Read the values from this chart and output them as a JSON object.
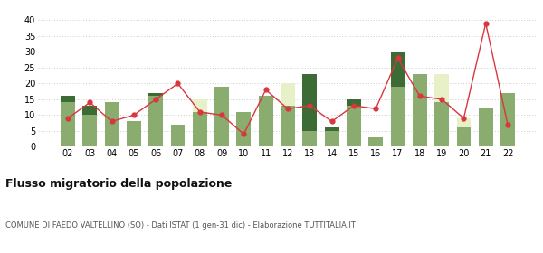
{
  "years": [
    "02",
    "03",
    "04",
    "05",
    "06",
    "07",
    "08",
    "09",
    "10",
    "11",
    "12",
    "13",
    "14",
    "15",
    "16",
    "17",
    "18",
    "19",
    "20",
    "21",
    "22"
  ],
  "iscritti_comuni": [
    14,
    10,
    14,
    8,
    16,
    7,
    11,
    19,
    11,
    16,
    13,
    5,
    5,
    13,
    3,
    19,
    23,
    14,
    6,
    12,
    17
  ],
  "iscritti_estero": [
    0,
    0,
    0,
    0,
    0,
    0,
    4,
    0,
    0,
    0,
    7,
    0,
    0,
    0,
    0,
    0,
    0,
    9,
    3,
    0,
    0
  ],
  "iscritti_altri": [
    2,
    3,
    0,
    0,
    1,
    0,
    0,
    0,
    0,
    0,
    0,
    18,
    1,
    2,
    0,
    11,
    0,
    0,
    0,
    0,
    0
  ],
  "cancellati": [
    9,
    14,
    8,
    10,
    15,
    20,
    11,
    10,
    4,
    18,
    12,
    13,
    8,
    13,
    12,
    28,
    16,
    15,
    9,
    39,
    7
  ],
  "color_comuni": "#8aac6e",
  "color_estero": "#e8f0c8",
  "color_altri": "#3d6b35",
  "color_cancellati": "#d9363e",
  "ylim": [
    0,
    40
  ],
  "yticks": [
    0,
    5,
    10,
    15,
    20,
    25,
    30,
    35,
    40
  ],
  "title": "Flusso migratorio della popolazione",
  "subtitle": "COMUNE DI FAEDO VALTELLINO (SO) - Dati ISTAT (1 gen-31 dic) - Elaborazione TUTTITALIA.IT",
  "bg_color": "#ffffff",
  "grid_color": "#cccccc"
}
